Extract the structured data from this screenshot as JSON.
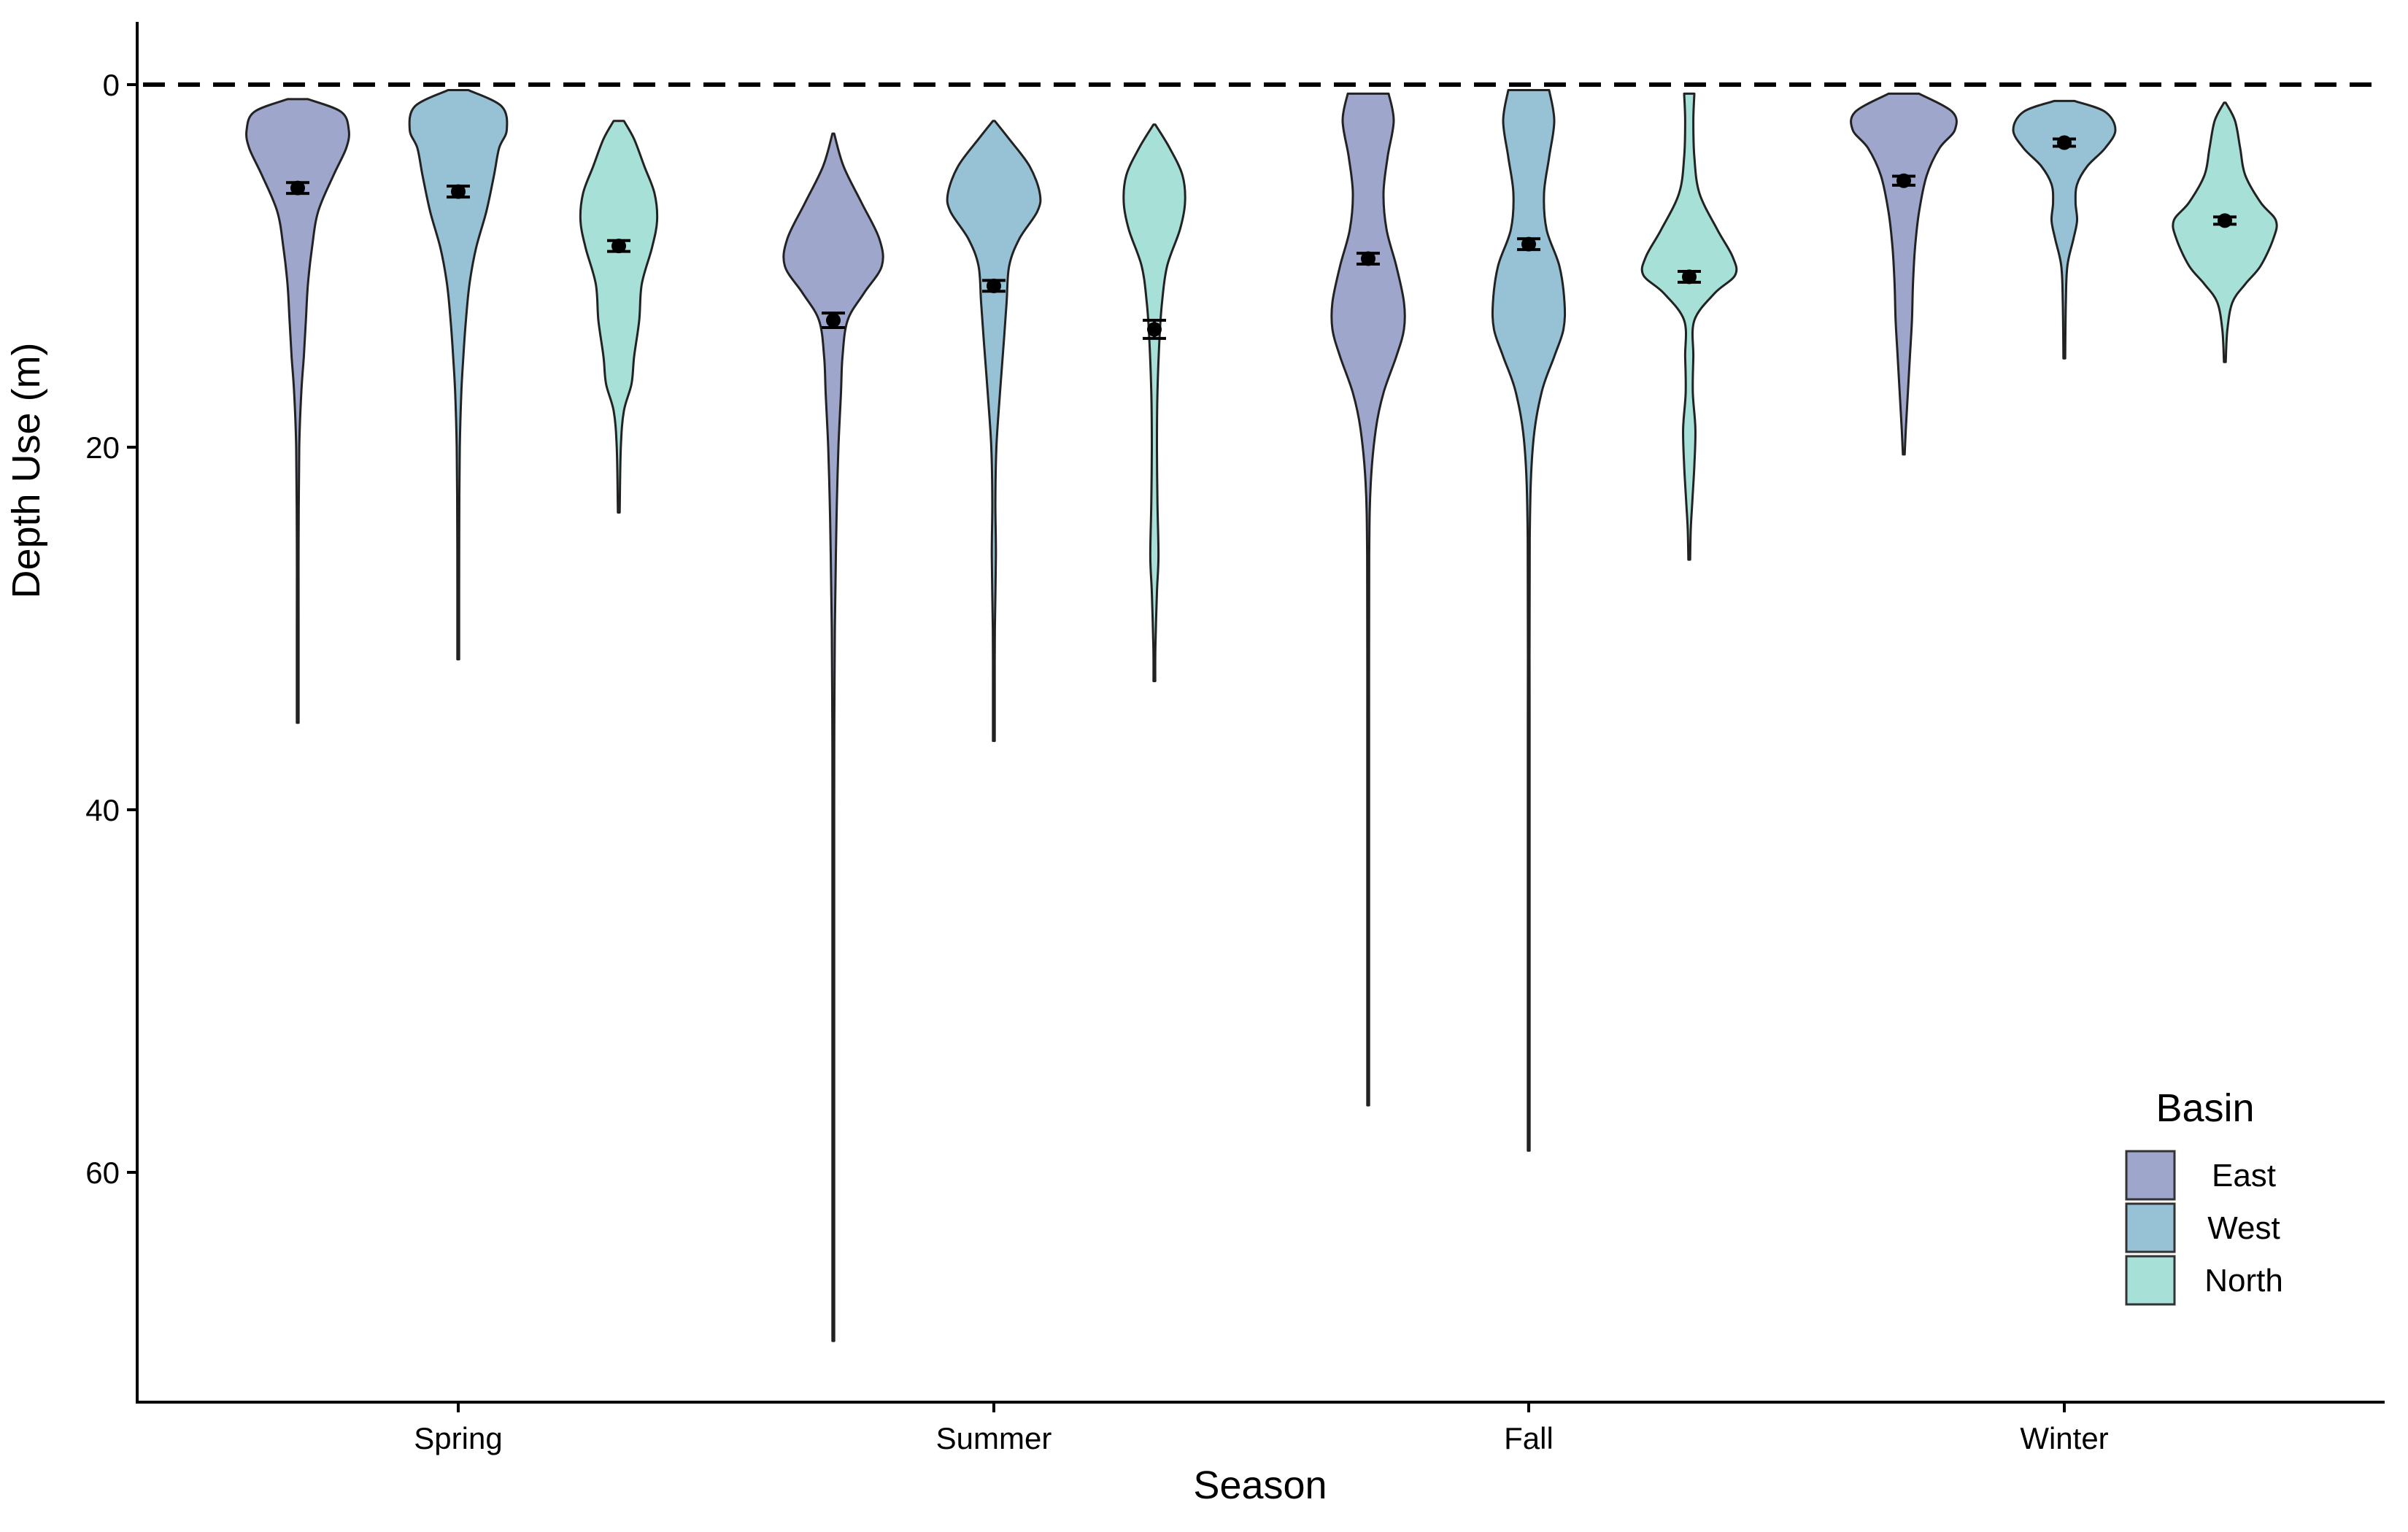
{
  "chart_data": {
    "type": "violin",
    "xlabel": "Season",
    "ylabel": "Depth Use (m)",
    "ylim": [
      0,
      72
    ],
    "y_axis_reversed": true,
    "y_ticks": [
      0,
      20,
      40,
      60
    ],
    "y_tick_labels": [
      "0",
      "20",
      "40",
      "60"
    ],
    "categories": [
      "Spring",
      "Summer",
      "Fall",
      "Winter"
    ],
    "reference_line": {
      "y": 0,
      "style": "dashed"
    },
    "grid": false,
    "legend": {
      "title": "Basin",
      "position": "bottom-right"
    },
    "series": [
      {
        "name": "East",
        "color": "#9fa6cc",
        "violins": [
          {
            "category": "Spring",
            "mean": 5.7,
            "se": 0.3,
            "profile": [
              [
                0.8,
                0.2
              ],
              [
                1.5,
                0.85
              ],
              [
                2.5,
                1.0
              ],
              [
                3.5,
                0.95
              ],
              [
                5,
                0.7
              ],
              [
                7,
                0.4
              ],
              [
                9,
                0.28
              ],
              [
                11,
                0.2
              ],
              [
                13,
                0.16
              ],
              [
                15,
                0.12
              ],
              [
                17,
                0.07
              ],
              [
                20,
                0.03
              ],
              [
                25,
                0.01
              ],
              [
                30,
                0.008
              ],
              [
                35.2,
                0
              ]
            ]
          },
          {
            "category": "Summer",
            "mean": 13.0,
            "se": 0.4,
            "profile": [
              [
                2.7,
                0
              ],
              [
                4.5,
                0.2
              ],
              [
                6.5,
                0.55
              ],
              [
                8.5,
                0.9
              ],
              [
                10,
                0.95
              ],
              [
                11.5,
                0.6
              ],
              [
                13,
                0.28
              ],
              [
                15,
                0.18
              ],
              [
                17,
                0.15
              ],
              [
                20,
                0.1
              ],
              [
                23,
                0.07
              ],
              [
                26,
                0.05
              ],
              [
                30,
                0.03
              ],
              [
                35,
                0.02
              ],
              [
                40,
                0.01
              ],
              [
                50,
                0.006
              ],
              [
                60,
                0.005
              ],
              [
                69.3,
                0
              ]
            ]
          },
          {
            "category": "Fall",
            "mean": 9.6,
            "se": 0.3,
            "profile": [
              [
                0.5,
                0.4
              ],
              [
                2,
                0.5
              ],
              [
                4,
                0.38
              ],
              [
                6,
                0.3
              ],
              [
                8,
                0.36
              ],
              [
                10,
                0.55
              ],
              [
                12,
                0.7
              ],
              [
                13.5,
                0.7
              ],
              [
                15,
                0.55
              ],
              [
                17,
                0.3
              ],
              [
                19,
                0.15
              ],
              [
                22,
                0.05
              ],
              [
                26,
                0.02
              ],
              [
                35,
                0.01
              ],
              [
                45,
                0.008
              ],
              [
                56.3,
                0
              ]
            ]
          },
          {
            "category": "Winter",
            "mean": 5.3,
            "se": 0.25,
            "profile": [
              [
                0.5,
                0.3
              ],
              [
                1.5,
                0.95
              ],
              [
                2.5,
                1.0
              ],
              [
                3.5,
                0.7
              ],
              [
                5,
                0.45
              ],
              [
                7,
                0.3
              ],
              [
                9,
                0.22
              ],
              [
                11,
                0.18
              ],
              [
                13,
                0.16
              ],
              [
                15,
                0.12
              ],
              [
                17,
                0.08
              ],
              [
                19,
                0.04
              ],
              [
                20.4,
                0
              ]
            ]
          }
        ]
      },
      {
        "name": "West",
        "color": "#97c1d4",
        "violins": [
          {
            "category": "Spring",
            "mean": 5.9,
            "se": 0.3,
            "profile": [
              [
                0.3,
                0.2
              ],
              [
                1.2,
                0.85
              ],
              [
                2.5,
                0.95
              ],
              [
                3.5,
                0.8
              ],
              [
                5,
                0.7
              ],
              [
                7,
                0.55
              ],
              [
                9,
                0.35
              ],
              [
                11,
                0.22
              ],
              [
                13,
                0.15
              ],
              [
                15,
                0.1
              ],
              [
                17,
                0.06
              ],
              [
                20,
                0.03
              ],
              [
                24,
                0.02
              ],
              [
                28,
                0.01
              ],
              [
                31.7,
                0
              ]
            ]
          },
          {
            "category": "Summer",
            "mean": 11.1,
            "se": 0.3,
            "profile": [
              [
                2.0,
                0
              ],
              [
                3,
                0.3
              ],
              [
                4.5,
                0.7
              ],
              [
                6,
                0.9
              ],
              [
                7,
                0.85
              ],
              [
                8.5,
                0.5
              ],
              [
                10,
                0.3
              ],
              [
                12,
                0.25
              ],
              [
                14,
                0.2
              ],
              [
                17,
                0.12
              ],
              [
                20,
                0.05
              ],
              [
                23,
                0.03
              ],
              [
                26,
                0.04
              ],
              [
                30,
                0.02
              ],
              [
                33,
                0.01
              ],
              [
                36.2,
                0
              ]
            ]
          },
          {
            "category": "Fall",
            "mean": 8.8,
            "se": 0.3,
            "profile": [
              [
                0.3,
                0.4
              ],
              [
                2,
                0.5
              ],
              [
                4,
                0.4
              ],
              [
                6,
                0.3
              ],
              [
                8,
                0.35
              ],
              [
                10,
                0.6
              ],
              [
                12,
                0.7
              ],
              [
                13.5,
                0.68
              ],
              [
                15,
                0.5
              ],
              [
                17,
                0.25
              ],
              [
                20,
                0.08
              ],
              [
                25,
                0.02
              ],
              [
                35,
                0.01
              ],
              [
                45,
                0.008
              ],
              [
                58.8,
                0
              ]
            ]
          },
          {
            "category": "Winter",
            "mean": 3.2,
            "se": 0.2,
            "profile": [
              [
                0.9,
                0.2
              ],
              [
                1.5,
                0.8
              ],
              [
                2.5,
                1.0
              ],
              [
                3.5,
                0.8
              ],
              [
                4.5,
                0.45
              ],
              [
                5.5,
                0.25
              ],
              [
                6.5,
                0.22
              ],
              [
                7.5,
                0.25
              ],
              [
                8.5,
                0.18
              ],
              [
                10,
                0.06
              ],
              [
                12,
                0.03
              ],
              [
                15.1,
                0
              ]
            ]
          }
        ]
      },
      {
        "name": "North",
        "color": "#a6e0d7",
        "violins": [
          {
            "category": "Spring",
            "mean": 8.9,
            "se": 0.3,
            "profile": [
              [
                2.0,
                0.1
              ],
              [
                3,
                0.3
              ],
              [
                4.5,
                0.5
              ],
              [
                6,
                0.7
              ],
              [
                7.5,
                0.75
              ],
              [
                9,
                0.65
              ],
              [
                11,
                0.45
              ],
              [
                13,
                0.4
              ],
              [
                15,
                0.3
              ],
              [
                16.5,
                0.25
              ],
              [
                18,
                0.1
              ],
              [
                20,
                0.04
              ],
              [
                23.6,
                0
              ]
            ]
          },
          {
            "category": "Summer",
            "mean": 13.5,
            "se": 0.5,
            "profile": [
              [
                2.2,
                0
              ],
              [
                3.5,
                0.3
              ],
              [
                5,
                0.55
              ],
              [
                6.5,
                0.6
              ],
              [
                8,
                0.5
              ],
              [
                10,
                0.25
              ],
              [
                12,
                0.15
              ],
              [
                14,
                0.1
              ],
              [
                17,
                0.06
              ],
              [
                20,
                0.05
              ],
              [
                23,
                0.06
              ],
              [
                26,
                0.08
              ],
              [
                28,
                0.05
              ],
              [
                31,
                0.02
              ],
              [
                32.9,
                0
              ]
            ]
          },
          {
            "category": "Fall",
            "mean": 10.6,
            "se": 0.3,
            "profile": [
              [
                0.5,
                0.1
              ],
              [
                2,
                0.08
              ],
              [
                4,
                0.1
              ],
              [
                6,
                0.2
              ],
              [
                8,
                0.55
              ],
              [
                9.5,
                0.85
              ],
              [
                10.5,
                0.9
              ],
              [
                11.5,
                0.5
              ],
              [
                13,
                0.1
              ],
              [
                15,
                0.08
              ],
              [
                17,
                0.07
              ],
              [
                19,
                0.12
              ],
              [
                21,
                0.1
              ],
              [
                23,
                0.06
              ],
              [
                24.5,
                0.03
              ],
              [
                26.2,
                0
              ]
            ]
          },
          {
            "category": "Winter",
            "mean": 7.5,
            "se": 0.2,
            "profile": [
              [
                1.0,
                0
              ],
              [
                2,
                0.2
              ],
              [
                3.5,
                0.3
              ],
              [
                5,
                0.4
              ],
              [
                6.5,
                0.7
              ],
              [
                7.5,
                1.0
              ],
              [
                8.5,
                0.95
              ],
              [
                10,
                0.7
              ],
              [
                11,
                0.4
              ],
              [
                12,
                0.15
              ],
              [
                13.5,
                0.05
              ],
              [
                15.3,
                0
              ]
            ]
          }
        ]
      }
    ]
  }
}
